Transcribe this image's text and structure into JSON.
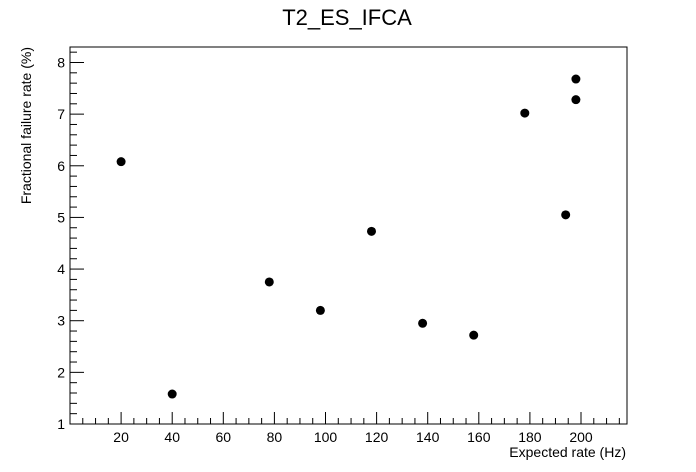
{
  "chart_data": {
    "type": "scatter",
    "title": "T2_ES_IFCA",
    "xlabel": "Expected rate (Hz)",
    "ylabel": "Fractional failure rate (%)",
    "xlim": [
      0,
      218
    ],
    "ylim": [
      1,
      8.3
    ],
    "x_ticks": [
      "20",
      "40",
      "60",
      "80",
      "100",
      "120",
      "140",
      "160",
      "180",
      "200"
    ],
    "y_ticks": [
      "1",
      "2",
      "3",
      "4",
      "5",
      "6",
      "7",
      "8"
    ],
    "grid": false,
    "marker_color": "#000000",
    "points": [
      {
        "x": 20,
        "y": 6.08
      },
      {
        "x": 40,
        "y": 1.58
      },
      {
        "x": 78,
        "y": 3.75
      },
      {
        "x": 98,
        "y": 3.2
      },
      {
        "x": 118,
        "y": 4.73
      },
      {
        "x": 138,
        "y": 2.95
      },
      {
        "x": 158,
        "y": 2.72
      },
      {
        "x": 178,
        "y": 7.02
      },
      {
        "x": 194,
        "y": 5.05
      },
      {
        "x": 198,
        "y": 7.28
      },
      {
        "x": 198,
        "y": 7.68
      }
    ]
  }
}
